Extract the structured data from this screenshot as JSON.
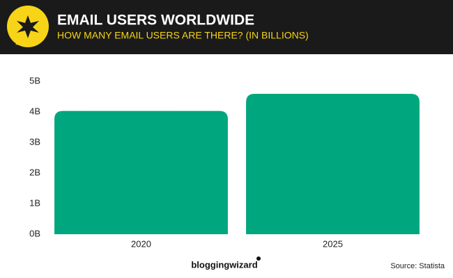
{
  "chart_data": {
    "type": "bar",
    "title": "EMAIL USERS WORLDWIDE",
    "subtitle": "HOW MANY EMAIL USERS ARE THERE? (IN BILLIONS)",
    "categories": [
      "2020",
      "2025"
    ],
    "values": [
      4.03,
      4.59
    ],
    "color": "#00a67d",
    "ylim": [
      0,
      5
    ],
    "yticks": [
      {
        "value": 0,
        "label": "0B"
      },
      {
        "value": 1,
        "label": "1B"
      },
      {
        "value": 2,
        "label": "2B"
      },
      {
        "value": 3,
        "label": "3B"
      },
      {
        "value": 4,
        "label": "4B"
      },
      {
        "value": 5,
        "label": "5B"
      }
    ],
    "grid": false,
    "brand": "bloggingwizard",
    "source": "Source: Statista"
  }
}
